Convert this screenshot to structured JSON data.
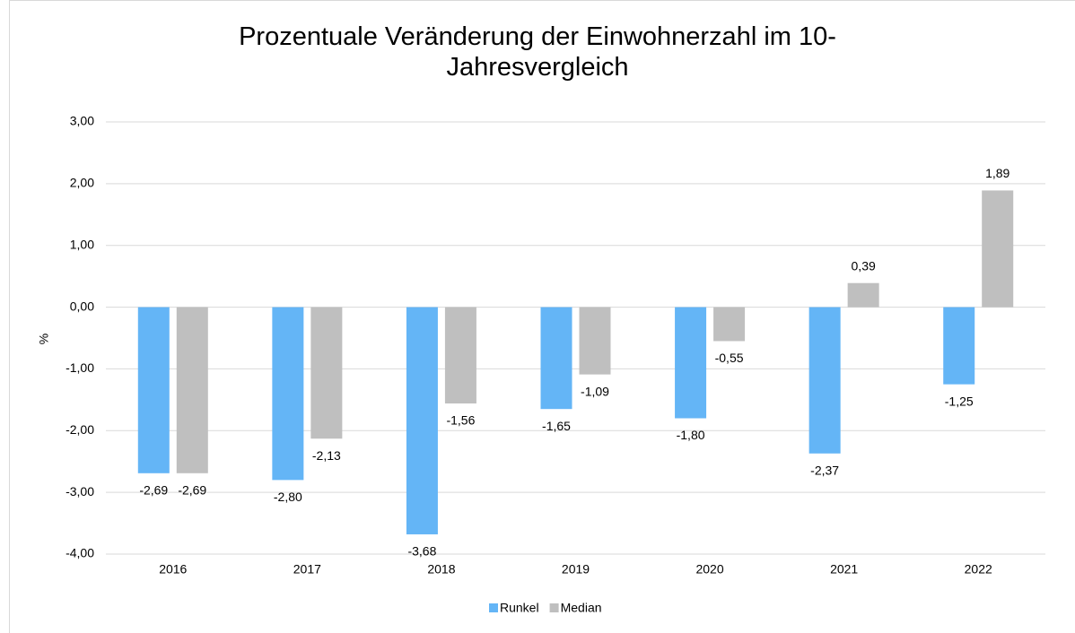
{
  "chart_data": {
    "type": "bar",
    "title": "Prozentuale Veränderung der Einwohnerzahl im 10-Jahresvergleich",
    "y_label": "%",
    "categories": [
      "2016",
      "2017",
      "2018",
      "2019",
      "2020",
      "2021",
      "2022"
    ],
    "series": [
      {
        "name": "Runkel",
        "color": "#64b5f6",
        "values": [
          -2.69,
          -2.8,
          -3.68,
          -1.65,
          -1.8,
          -2.37,
          -1.25
        ],
        "value_labels": [
          "-2,69",
          "-2,80",
          "-3,68",
          "-1,65",
          "-1,80",
          "-2,37",
          "-1,25"
        ]
      },
      {
        "name": "Median",
        "color": "#bfbfbf",
        "values": [
          -2.69,
          -2.13,
          -1.56,
          -1.09,
          -0.55,
          0.39,
          1.89
        ],
        "value_labels": [
          "-2,69",
          "-2,13",
          "-1,56",
          "-1,09",
          "-0,55",
          "0,39",
          "1,89"
        ]
      }
    ],
    "ylim": [
      -4,
      3
    ],
    "yticks": [
      {
        "value": -4,
        "label": "-4,00"
      },
      {
        "value": -3,
        "label": "-3,00"
      },
      {
        "value": -2,
        "label": "-2,00"
      },
      {
        "value": -1,
        "label": "-1,00"
      },
      {
        "value": 0,
        "label": "0,00"
      },
      {
        "value": 1,
        "label": "1,00"
      },
      {
        "value": 2,
        "label": "2,00"
      },
      {
        "value": 3,
        "label": "3,00"
      }
    ],
    "grid": true,
    "legend": "bottom"
  }
}
